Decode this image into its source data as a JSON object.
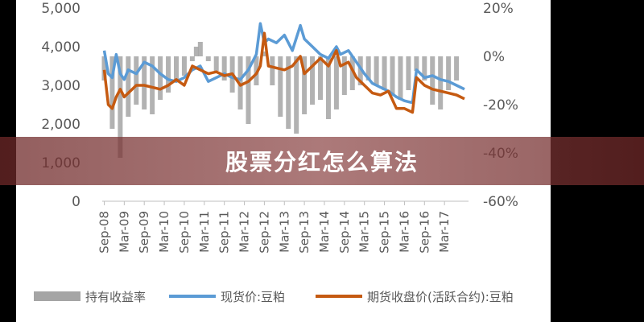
{
  "banner": {
    "title": "股票分红怎么算法"
  },
  "chart_data": {
    "type": "line",
    "title": "",
    "xlabel": "",
    "ylabel": "",
    "ylim": [
      0,
      5000
    ],
    "y2lim": [
      -60,
      20
    ],
    "yticks": [
      "0",
      "1,000",
      "2,000",
      "3,000",
      "4,000",
      "5,000"
    ],
    "y2ticks": [
      "-60%",
      "-40%",
      "-20%",
      "0%",
      "20%"
    ],
    "x_tick_labels": [
      "Sep-08",
      "Mar-09",
      "Sep-09",
      "Mar-10",
      "Sep-10",
      "Mar-11",
      "Sep-11",
      "Mar-12",
      "Sep-12",
      "Mar-13",
      "Sep-13",
      "Mar-14",
      "Sep-14",
      "Mar-15",
      "Sep-15",
      "Mar-16",
      "Sep-16",
      "Mar-17"
    ],
    "legend_position": "bottom",
    "series": [
      {
        "name": "持有收益率",
        "kind": "bar",
        "axis": "right",
        "color": "#A5A5A5",
        "x": [
          2008.7,
          2008.9,
          2009.1,
          2009.3,
          2009.5,
          2009.7,
          2009.9,
          2010.1,
          2010.3,
          2010.5,
          2010.7,
          2010.9,
          2011.0,
          2011.1,
          2011.3,
          2011.5,
          2011.7,
          2011.9,
          2012.1,
          2012.3,
          2012.5,
          2012.7,
          2012.9,
          2013.1,
          2013.3,
          2013.5,
          2013.7,
          2013.9,
          2014.1,
          2014.3,
          2014.5,
          2014.7,
          2014.9,
          2015.1,
          2015.3,
          2015.5,
          2015.7,
          2015.9,
          2016.1,
          2016.3,
          2016.5,
          2016.7,
          2016.9,
          2017.1,
          2017.3,
          2017.5
        ],
        "values": [
          -10,
          -30,
          -42,
          -25,
          -20,
          -22,
          -24,
          -18,
          -15,
          -10,
          -8,
          -2,
          4,
          6,
          -2,
          -6,
          -10,
          -15,
          -22,
          -28,
          -12,
          2,
          -12,
          -25,
          -30,
          -32,
          -24,
          -20,
          -18,
          -26,
          -22,
          -16,
          -14,
          -12,
          -10,
          -12,
          -14,
          -16,
          -18,
          -14,
          -6,
          -10,
          -20,
          -22,
          -14,
          -10
        ]
      },
      {
        "name": "现货价:豆粕",
        "kind": "line",
        "axis": "left",
        "color": "#5B9BD5",
        "x": [
          2008.7,
          2008.8,
          2008.9,
          2009.0,
          2009.1,
          2009.2,
          2009.3,
          2009.5,
          2009.7,
          2009.9,
          2010.1,
          2010.3,
          2010.5,
          2010.7,
          2010.9,
          2011.1,
          2011.3,
          2011.5,
          2011.7,
          2011.9,
          2012.1,
          2012.3,
          2012.5,
          2012.6,
          2012.7,
          2012.8,
          2013.0,
          2013.2,
          2013.4,
          2013.6,
          2013.7,
          2013.9,
          2014.1,
          2014.3,
          2014.5,
          2014.6,
          2014.8,
          2015.0,
          2015.2,
          2015.4,
          2015.6,
          2015.8,
          2016.0,
          2016.2,
          2016.4,
          2016.5,
          2016.7,
          2016.9,
          2017.1,
          2017.3,
          2017.5,
          2017.7
        ],
        "values": [
          3900,
          3300,
          3200,
          3800,
          3300,
          3150,
          3400,
          3300,
          3600,
          3500,
          3300,
          3150,
          3100,
          3200,
          3400,
          3500,
          3100,
          3200,
          3300,
          3200,
          3150,
          3400,
          3800,
          4600,
          4100,
          4200,
          4100,
          4300,
          3900,
          4550,
          4200,
          4000,
          3800,
          3700,
          4000,
          3800,
          3900,
          3600,
          3300,
          3050,
          2950,
          2850,
          2700,
          2600,
          2550,
          3400,
          3200,
          3250,
          3150,
          3100,
          3000,
          2900
        ]
      },
      {
        "name": "期货收盘价(活跃合约):豆粕",
        "kind": "line",
        "axis": "left",
        "color": "#C55A11",
        "x": [
          2008.7,
          2008.8,
          2008.9,
          2009.0,
          2009.1,
          2009.2,
          2009.3,
          2009.5,
          2009.7,
          2009.9,
          2010.1,
          2010.3,
          2010.5,
          2010.7,
          2010.9,
          2011.1,
          2011.3,
          2011.5,
          2011.7,
          2011.9,
          2012.1,
          2012.3,
          2012.5,
          2012.6,
          2012.7,
          2012.8,
          2013.0,
          2013.2,
          2013.4,
          2013.6,
          2013.7,
          2013.9,
          2014.1,
          2014.3,
          2014.5,
          2014.6,
          2014.8,
          2015.0,
          2015.2,
          2015.4,
          2015.6,
          2015.8,
          2016.0,
          2016.2,
          2016.4,
          2016.5,
          2016.7,
          2016.9,
          2017.1,
          2017.3,
          2017.5,
          2017.7
        ],
        "values": [
          3400,
          2500,
          2400,
          2700,
          2900,
          2700,
          2800,
          3000,
          3000,
          2950,
          2900,
          3000,
          3150,
          3000,
          3500,
          3400,
          3300,
          3350,
          3250,
          3300,
          3000,
          3100,
          3300,
          3500,
          4350,
          3500,
          3450,
          3400,
          3500,
          3750,
          3300,
          3500,
          3700,
          3500,
          3900,
          3500,
          3600,
          3200,
          3000,
          2800,
          2750,
          2850,
          2400,
          2400,
          2300,
          3200,
          3000,
          2900,
          2850,
          2800,
          2750,
          2650
        ]
      }
    ]
  }
}
